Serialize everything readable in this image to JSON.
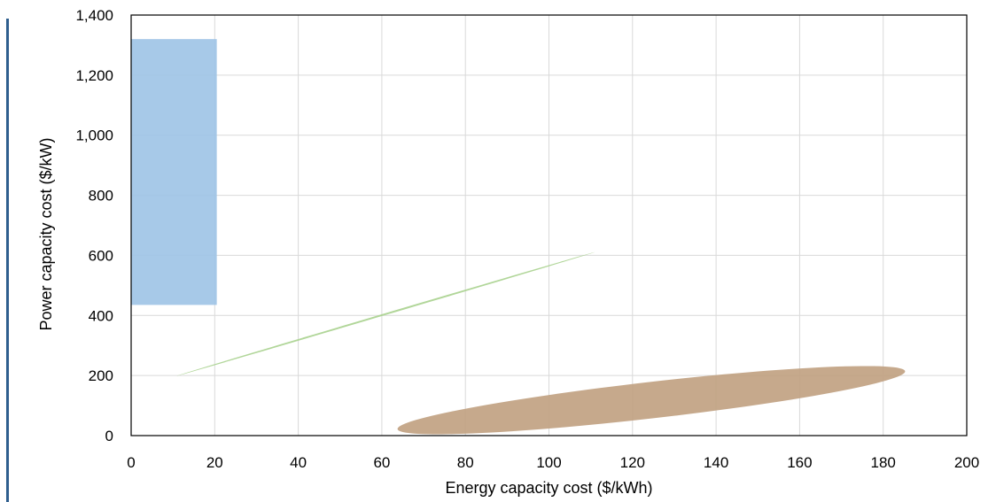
{
  "chart_data": {
    "type": "scatter",
    "title": "",
    "xlabel": "Energy capacity cost ($/kWh)",
    "ylabel": "Power capacity cost ($/kW)",
    "xlim": [
      0,
      200
    ],
    "ylim": [
      0,
      1400
    ],
    "x_ticks": [
      0,
      20,
      40,
      60,
      80,
      100,
      120,
      140,
      160,
      180,
      200
    ],
    "y_ticks": [
      0,
      200,
      400,
      600,
      800,
      1000,
      1200,
      1400
    ],
    "x_tick_labels": [
      "0",
      "20",
      "40",
      "60",
      "80",
      "100",
      "120",
      "140",
      "160",
      "180",
      "200"
    ],
    "y_tick_labels": [
      "0",
      "200",
      "400",
      "600",
      "800",
      "1,000",
      "1,200",
      "1,400"
    ],
    "grid": true,
    "legend": "none",
    "regions": [
      {
        "shape": "rectangle",
        "x_range": [
          0,
          20.5
        ],
        "y_range": [
          435,
          1320
        ],
        "color": "#9DC3E6"
      },
      {
        "shape": "ellipse",
        "center": [
          61,
          405
        ],
        "x_extent": [
          11,
          111
        ],
        "y_extent": [
          210,
          605
        ],
        "tilt_direction": "rising",
        "color": "#A9D18E"
      },
      {
        "shape": "ellipse",
        "center": [
          124.5,
          118
        ],
        "x_extent": [
          64,
          185.5
        ],
        "y_extent": [
          5,
          232
        ],
        "tilt_direction": "rising",
        "color": "#C0A07F"
      }
    ]
  },
  "colors": {
    "accent_bar": "#2E5E8E",
    "grid": "#D9D9D9",
    "axis": "#000000"
  }
}
